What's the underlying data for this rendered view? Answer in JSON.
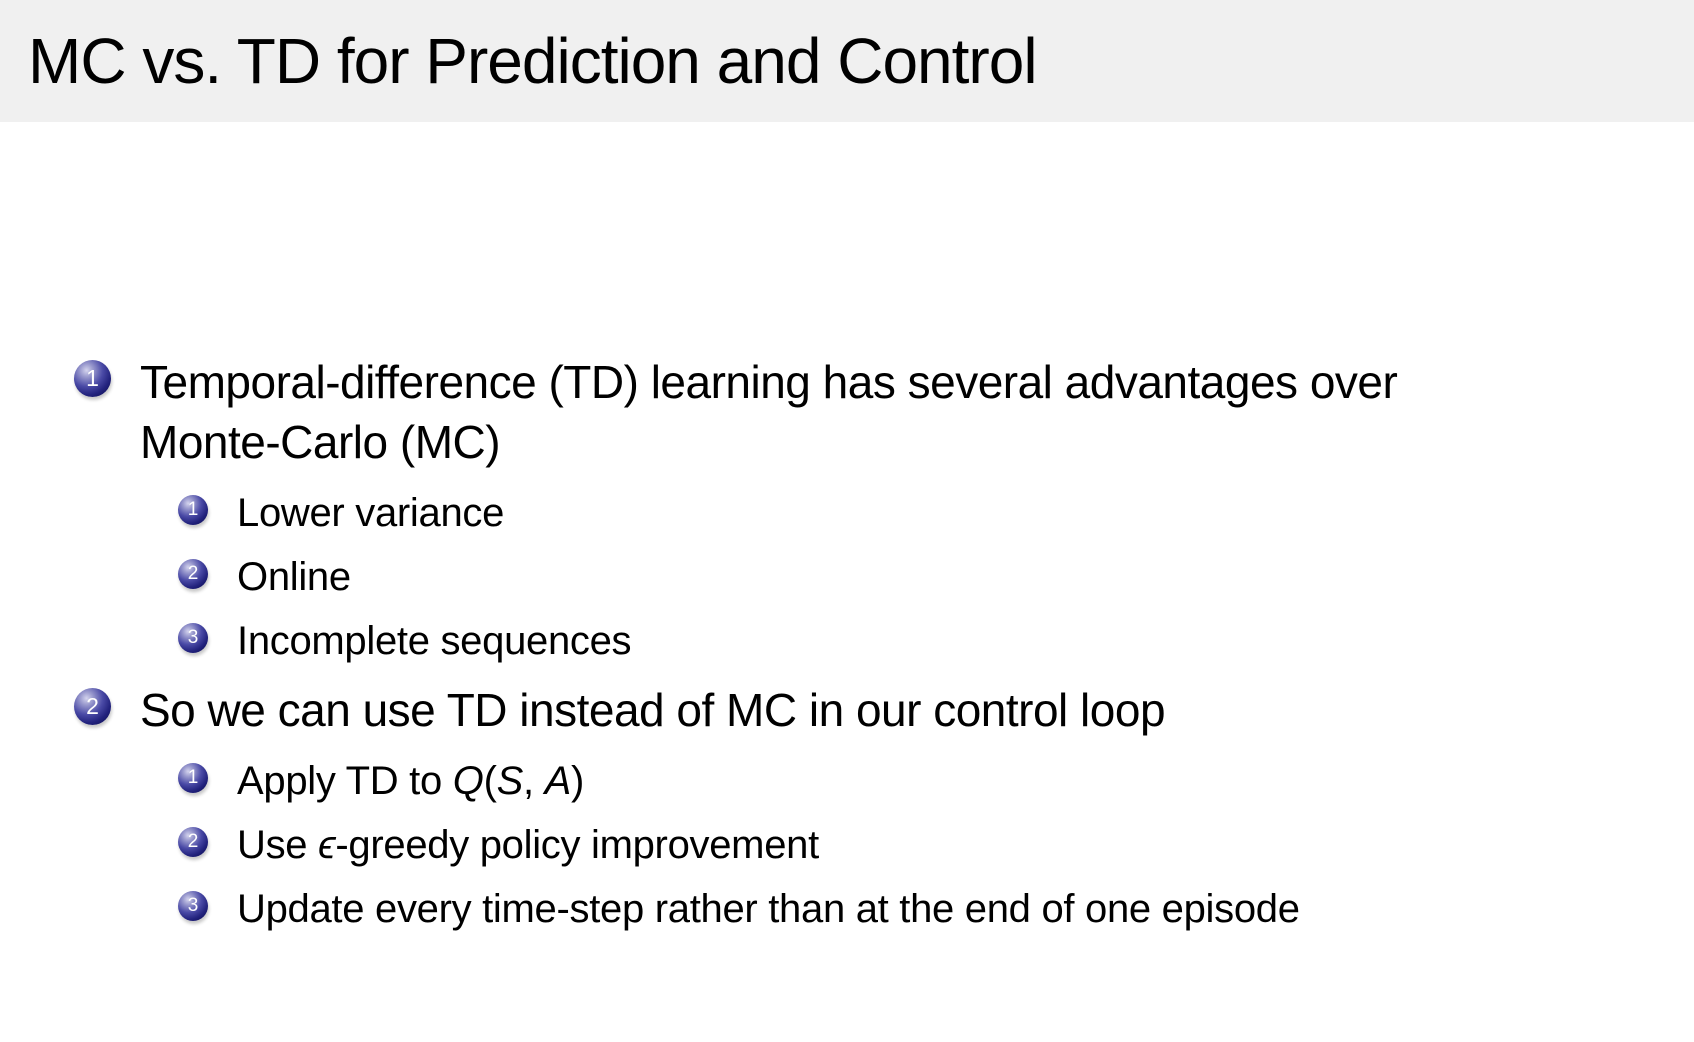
{
  "colors": {
    "header_bg": "#f0f0f0",
    "body_bg": "#ffffff",
    "text": "#000000",
    "ball_dark": "#0a0a4e",
    "ball_mid": "#23237e",
    "ball_highlight": "#d4d4ee",
    "ball_number": "#ffffff"
  },
  "slide": {
    "title": "MC vs. TD for Prediction and Control",
    "items": [
      {
        "number": "1",
        "lines": [
          "Temporal-difference (TD) learning has several advantages over",
          "Monte-Carlo (MC)"
        ],
        "subitems": [
          {
            "number": "1",
            "segments": [
              {
                "style": "normal",
                "text": "Lower variance"
              }
            ]
          },
          {
            "number": "2",
            "segments": [
              {
                "style": "normal",
                "text": "Online"
              }
            ]
          },
          {
            "number": "3",
            "segments": [
              {
                "style": "normal",
                "text": "Incomplete sequences"
              }
            ]
          }
        ]
      },
      {
        "number": "2",
        "lines": [
          "So we can use TD instead of MC in our control loop"
        ],
        "subitems": [
          {
            "number": "1",
            "segments": [
              {
                "style": "normal",
                "text": "Apply TD to "
              },
              {
                "style": "math",
                "text": "Q"
              },
              {
                "style": "normal",
                "text": "("
              },
              {
                "style": "math",
                "text": "S"
              },
              {
                "style": "normal",
                "text": ", "
              },
              {
                "style": "math",
                "text": "A"
              },
              {
                "style": "normal",
                "text": ")"
              }
            ]
          },
          {
            "number": "2",
            "segments": [
              {
                "style": "normal",
                "text": "Use "
              },
              {
                "style": "math",
                "text": "ϵ"
              },
              {
                "style": "normal",
                "text": "-greedy policy improvement"
              }
            ]
          },
          {
            "number": "3",
            "segments": [
              {
                "style": "normal",
                "text": "Update every time-step rather than at the end of one episode"
              }
            ]
          }
        ]
      }
    ]
  }
}
